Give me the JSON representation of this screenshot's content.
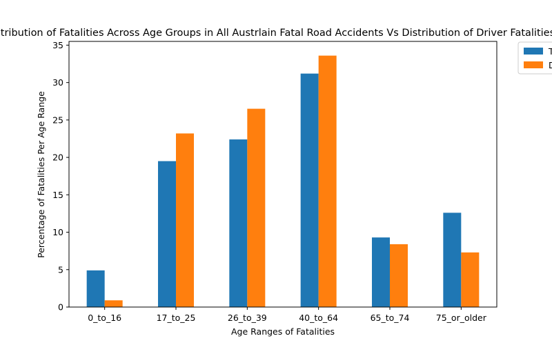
{
  "chart_data": {
    "type": "bar",
    "title": "Distribution of Fatalities Across Age Groups in All Austrlain Fatal Road Accidents Vs Distribution of Driver Fatalities Only",
    "xlabel": "Age Ranges of Fatalities",
    "ylabel": "Percentage of Fatalities Per Age Range",
    "categories": [
      "0_to_16",
      "17_to_25",
      "26_to_39",
      "40_to_64",
      "65_to_74",
      "75_or_older"
    ],
    "series": [
      {
        "name": "Total Fatalities",
        "color": "#1f77b4",
        "values": [
          4.9,
          19.5,
          22.4,
          31.2,
          9.3,
          12.6
        ]
      },
      {
        "name": "Driver Fatalities",
        "color": "#ff7f0e",
        "values": [
          0.9,
          23.2,
          26.5,
          33.6,
          8.4,
          7.3
        ]
      }
    ],
    "ylim": [
      0,
      35.5
    ],
    "yticks": [
      0,
      5,
      10,
      15,
      20,
      25,
      30,
      35
    ],
    "grid": false,
    "legend_position": "upper-right-outside"
  }
}
